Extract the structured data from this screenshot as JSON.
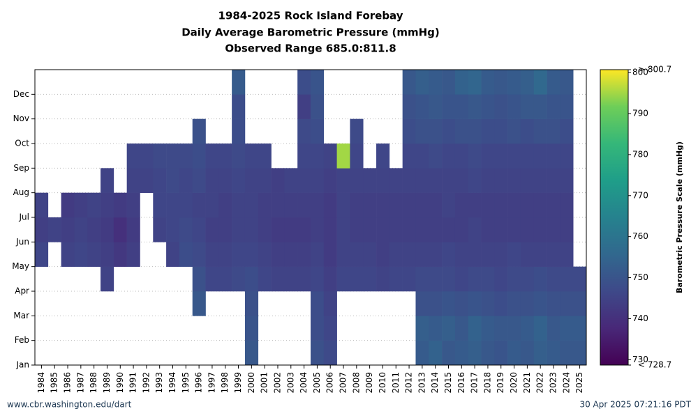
{
  "chart_data": {
    "type": "heatmap",
    "title_lines": [
      "1984-2025 Rock Island Forebay",
      "Daily Average Barometric Pressure (mmHg)",
      "Observed Range 685.0:811.8"
    ],
    "x": [
      "1984",
      "1985",
      "1986",
      "1987",
      "1988",
      "1989",
      "1990",
      "1991",
      "1992",
      "1993",
      "1994",
      "1995",
      "1996",
      "1997",
      "1998",
      "1999",
      "2000",
      "2001",
      "2002",
      "2003",
      "2004",
      "2005",
      "2006",
      "2007",
      "2008",
      "2009",
      "2010",
      "2011",
      "2012",
      "2013",
      "2014",
      "2015",
      "2016",
      "2017",
      "2018",
      "2019",
      "2020",
      "2021",
      "2022",
      "2023",
      "2024",
      "2025"
    ],
    "y": [
      "Jan",
      "Feb",
      "Mar",
      "Apr",
      "May",
      "Jun",
      "Jul",
      "Aug",
      "Sep",
      "Oct",
      "Nov",
      "Dec"
    ],
    "values": [
      [
        null,
        null,
        null,
        null,
        746,
        744,
        745,
        null,
        null,
        null,
        null,
        null
      ],
      [
        null,
        null,
        null,
        null,
        null,
        745,
        null,
        null,
        null,
        null,
        null,
        null
      ],
      [
        null,
        null,
        null,
        null,
        745,
        744,
        743,
        null,
        null,
        null,
        null,
        null
      ],
      [
        null,
        null,
        null,
        null,
        746,
        745,
        744,
        null,
        null,
        null,
        null,
        null
      ],
      [
        null,
        null,
        null,
        null,
        745,
        744,
        745,
        null,
        null,
        null,
        null,
        null
      ],
      [
        null,
        null,
        null,
        745,
        744,
        743,
        744,
        745,
        null,
        null,
        null,
        null
      ],
      [
        null,
        null,
        null,
        null,
        742,
        740,
        743,
        null,
        null,
        null,
        null,
        null
      ],
      [
        null,
        null,
        null,
        null,
        744,
        743,
        744,
        745,
        746,
        null,
        null,
        null
      ],
      [
        null,
        null,
        null,
        null,
        null,
        null,
        null,
        745,
        746,
        null,
        null,
        null
      ],
      [
        null,
        null,
        null,
        null,
        null,
        745,
        746,
        746,
        747,
        null,
        null,
        null
      ],
      [
        null,
        null,
        null,
        null,
        745,
        746,
        746,
        747,
        747,
        null,
        null,
        null
      ],
      [
        null,
        null,
        null,
        null,
        748,
        747,
        746,
        746,
        747,
        null,
        null,
        null
      ],
      [
        null,
        null,
        751,
        749,
        747,
        746,
        745,
        747,
        748,
        749,
        null,
        null
      ],
      [
        null,
        null,
        null,
        746,
        745,
        744,
        745,
        745,
        746,
        null,
        null,
        null
      ],
      [
        null,
        null,
        null,
        746,
        745,
        744,
        744,
        745,
        746,
        null,
        null,
        null
      ],
      [
        null,
        null,
        null,
        747,
        746,
        745,
        745,
        746,
        747,
        748,
        748,
        752
      ],
      [
        751,
        750,
        749,
        748,
        746,
        745,
        745,
        745,
        746,
        null,
        null,
        null
      ],
      [
        null,
        null,
        null,
        746,
        745,
        744,
        744,
        745,
        746,
        null,
        null,
        null
      ],
      [
        null,
        null,
        null,
        745,
        744,
        743,
        744,
        744,
        null,
        null,
        null,
        null
      ],
      [
        null,
        null,
        null,
        745,
        744,
        743,
        744,
        745,
        null,
        null,
        null,
        null
      ],
      [
        null,
        null,
        null,
        745,
        744,
        743,
        744,
        745,
        746,
        747,
        744,
        748
      ],
      [
        749,
        748,
        748,
        746,
        745,
        744,
        744,
        745,
        746,
        748,
        749,
        750
      ],
      [
        747,
        746,
        745,
        744,
        743,
        743,
        743,
        744,
        745,
        null,
        null,
        null
      ],
      [
        null,
        null,
        null,
        746,
        745,
        745,
        745,
        745,
        795,
        null,
        null,
        null
      ],
      [
        null,
        null,
        null,
        746,
        745,
        744,
        744,
        745,
        746,
        747,
        null,
        null
      ],
      [
        null,
        null,
        null,
        746,
        745,
        744,
        744,
        745,
        null,
        null,
        null,
        null
      ],
      [
        null,
        null,
        null,
        745,
        744,
        744,
        744,
        745,
        746,
        null,
        null,
        null
      ],
      [
        null,
        null,
        null,
        746,
        745,
        744,
        744,
        745,
        null,
        null,
        null,
        null
      ],
      [
        null,
        null,
        null,
        746,
        745,
        744,
        744,
        745,
        746,
        748,
        749,
        751
      ],
      [
        752,
        753,
        749,
        747,
        745,
        744,
        744,
        745,
        746,
        749,
        750,
        753
      ],
      [
        754,
        752,
        749,
        747,
        745,
        744,
        744,
        745,
        747,
        749,
        751,
        752
      ],
      [
        751,
        753,
        750,
        747,
        746,
        744,
        745,
        745,
        746,
        748,
        750,
        751
      ],
      [
        752,
        751,
        749,
        746,
        745,
        744,
        744,
        745,
        746,
        749,
        750,
        754
      ],
      [
        753,
        754,
        750,
        747,
        745,
        745,
        744,
        746,
        747,
        749,
        751,
        755
      ],
      [
        751,
        752,
        749,
        747,
        745,
        744,
        744,
        745,
        746,
        748,
        750,
        752
      ],
      [
        750,
        751,
        748,
        746,
        745,
        744,
        744,
        745,
        746,
        748,
        749,
        751
      ],
      [
        752,
        751,
        749,
        747,
        746,
        744,
        744,
        745,
        746,
        749,
        750,
        752
      ],
      [
        751,
        752,
        749,
        747,
        745,
        744,
        744,
        745,
        746,
        748,
        751,
        753
      ],
      [
        753,
        754,
        750,
        748,
        745,
        744,
        744,
        745,
        746,
        749,
        751,
        756
      ],
      [
        752,
        751,
        749,
        747,
        745,
        744,
        744,
        745,
        746,
        749,
        750,
        752
      ],
      [
        751,
        752,
        749,
        747,
        745,
        744,
        744,
        745,
        746,
        748,
        750,
        751
      ],
      [
        751,
        752,
        749,
        747,
        null,
        null,
        null,
        null,
        null,
        null,
        null,
        null
      ]
    ],
    "colormap": "viridis",
    "clim": [
      728.7,
      800.7
    ],
    "cticks": [
      {
        "value": 728.7,
        "label": "< 728.7"
      },
      730,
      740,
      750,
      760,
      770,
      780,
      790,
      800,
      {
        "value": 800.7,
        "label": "> 800.7"
      }
    ],
    "colorbar_label": "Barometric Pressure Scale (mmHg)",
    "grid": true
  },
  "footer_left": "www.cbr.washington.edu/dart",
  "footer_right": "30 Apr 2025 07:21:16 PDT"
}
